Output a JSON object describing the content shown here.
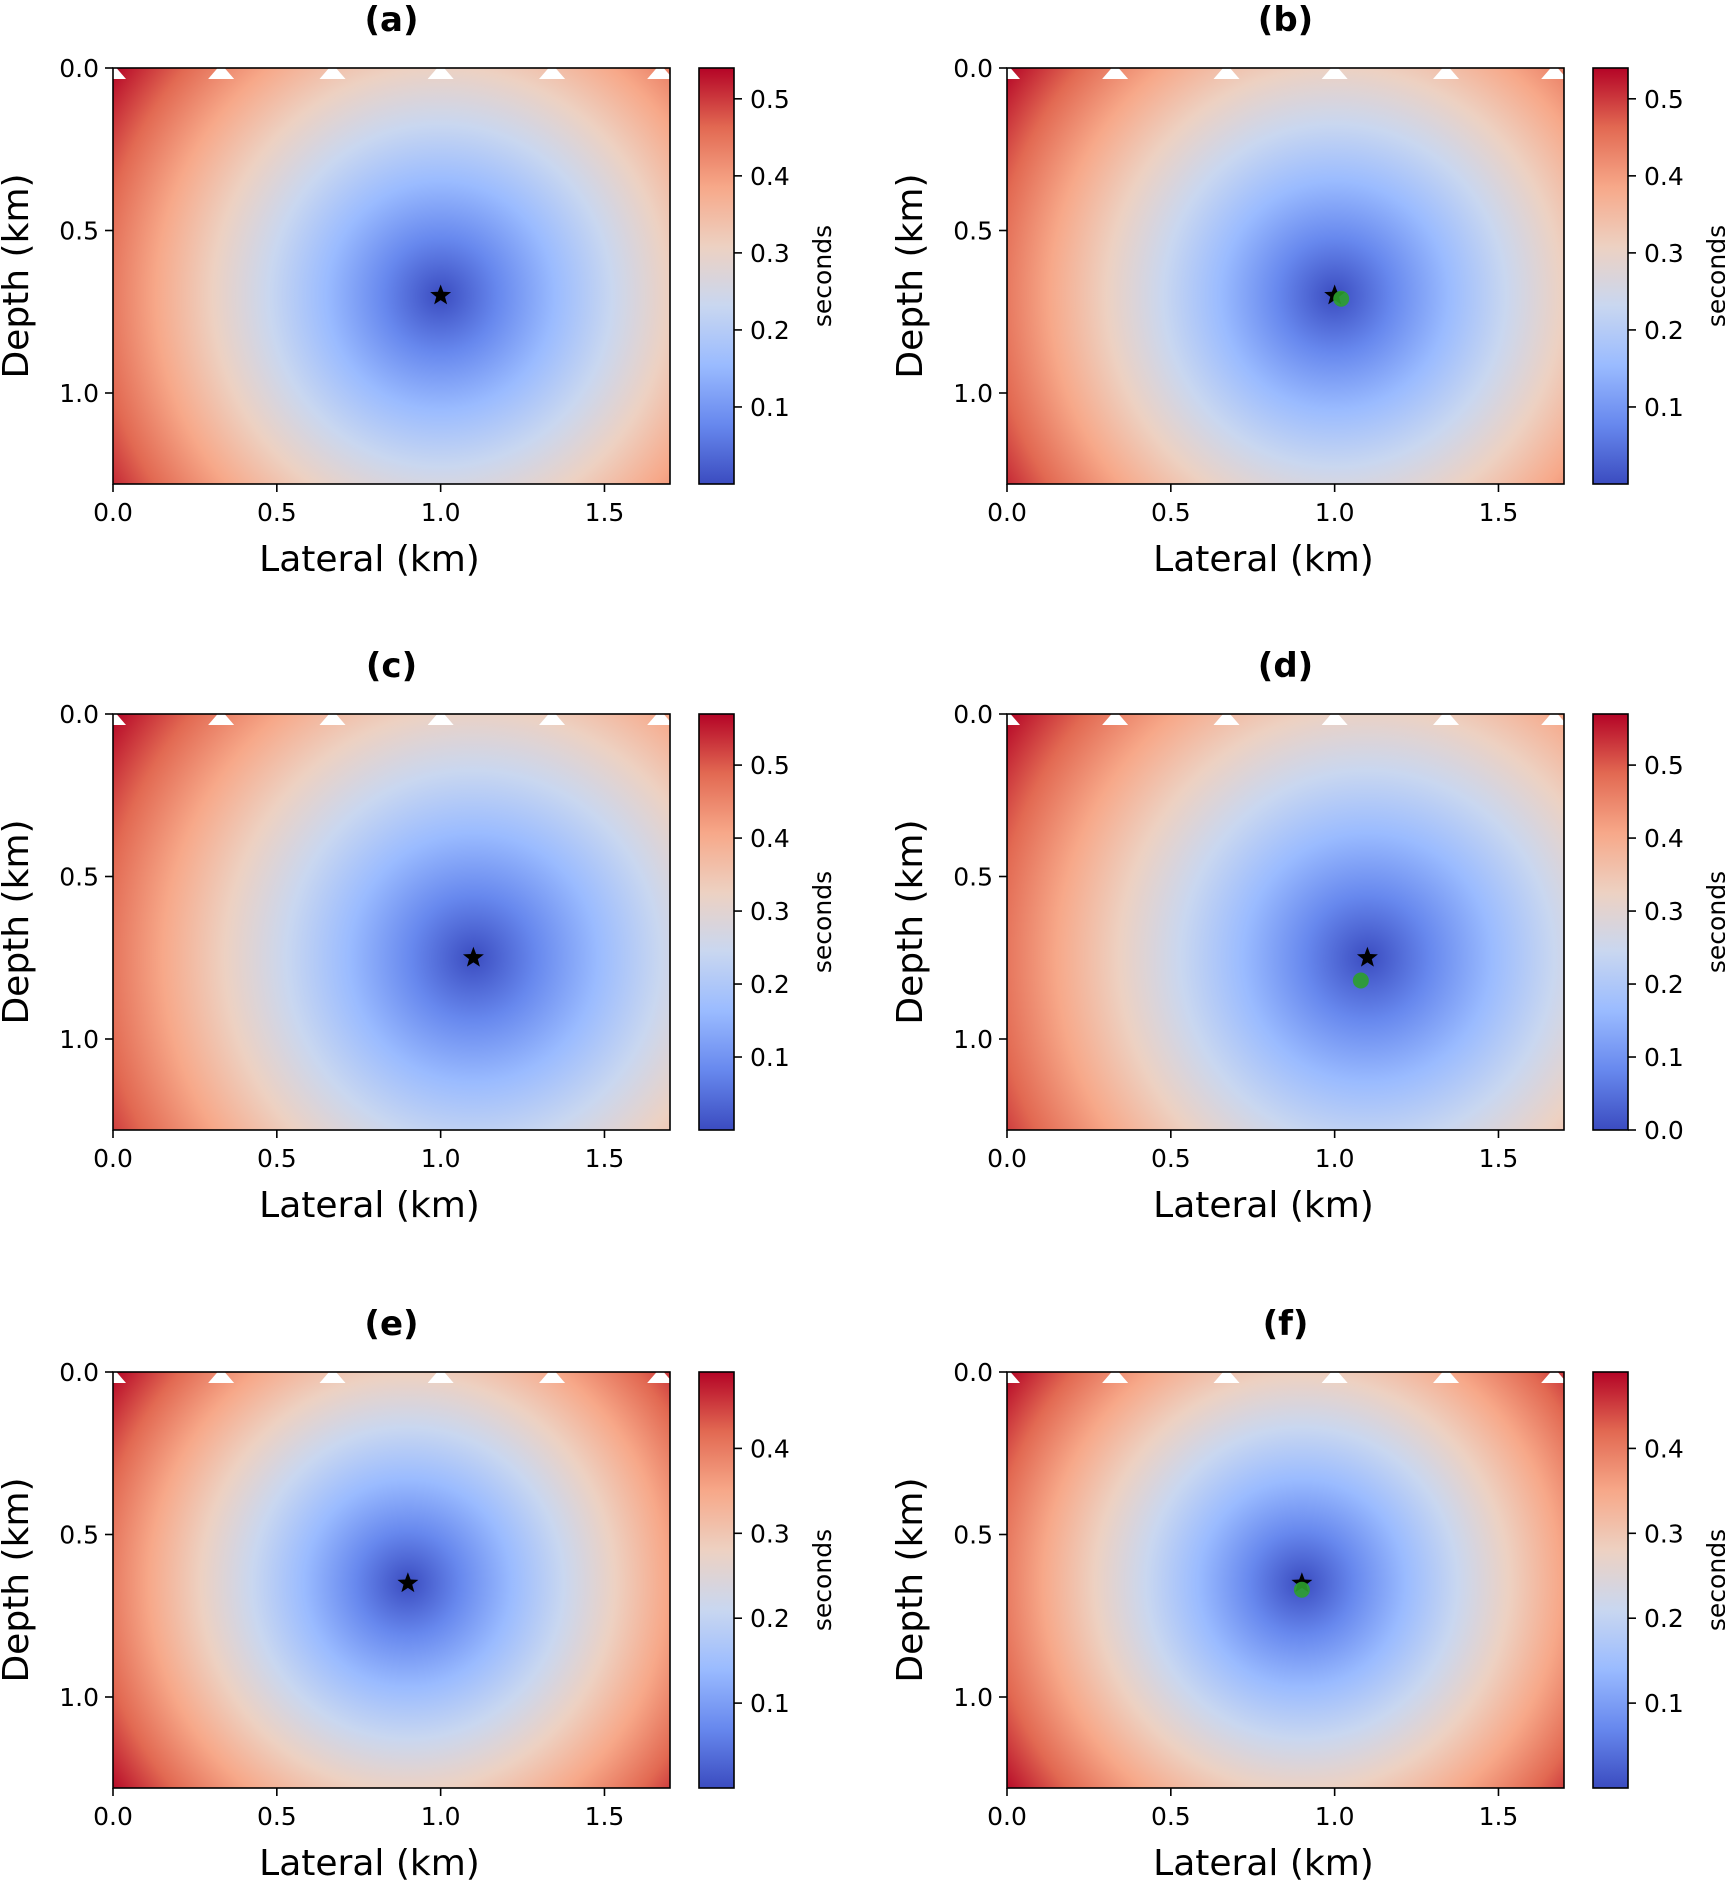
{
  "chart_data": [
    {
      "type": "heatmap",
      "title": "(a)",
      "xlabel": "Lateral (km)",
      "ylabel": "Depth (km)",
      "colorbar_label": "seconds",
      "colormap": "coolwarm",
      "xlim": [
        0.0,
        1.7
      ],
      "ylim": [
        1.28,
        0.0
      ],
      "xticks": [
        "0.0",
        "0.5",
        "1.0",
        "1.5"
      ],
      "yticks": [
        "0.0",
        "0.5",
        "1.0"
      ],
      "colorbar_ticks": [
        "0.1",
        "0.2",
        "0.3",
        "0.4",
        "0.5"
      ],
      "colorbar_range": [
        0.0,
        0.54
      ],
      "receivers": [
        [
          0.0,
          0.0
        ],
        [
          0.33,
          0.0
        ],
        [
          0.67,
          0.0
        ],
        [
          1.0,
          0.0
        ],
        [
          1.34,
          0.0
        ],
        [
          1.67,
          0.0
        ]
      ],
      "true_source": [
        1.0,
        0.7
      ],
      "estimated_source": null
    },
    {
      "type": "heatmap",
      "title": "(b)",
      "xlabel": "Lateral (km)",
      "ylabel": "Depth (km)",
      "colorbar_label": "seconds",
      "colormap": "coolwarm",
      "xlim": [
        0.0,
        1.7
      ],
      "ylim": [
        1.28,
        0.0
      ],
      "xticks": [
        "0.0",
        "0.5",
        "1.0",
        "1.5"
      ],
      "yticks": [
        "0.0",
        "0.5",
        "1.0"
      ],
      "colorbar_ticks": [
        "0.1",
        "0.2",
        "0.3",
        "0.4",
        "0.5"
      ],
      "colorbar_range": [
        0.0,
        0.54
      ],
      "receivers": [
        [
          0.0,
          0.0
        ],
        [
          0.33,
          0.0
        ],
        [
          0.67,
          0.0
        ],
        [
          1.0,
          0.0
        ],
        [
          1.34,
          0.0
        ],
        [
          1.67,
          0.0
        ]
      ],
      "true_source": [
        1.0,
        0.7
      ],
      "estimated_source": [
        1.02,
        0.71
      ]
    },
    {
      "type": "heatmap",
      "title": "(c)",
      "xlabel": "Lateral (km)",
      "ylabel": "Depth (km)",
      "colorbar_label": "seconds",
      "colormap": "coolwarm",
      "xlim": [
        0.0,
        1.7
      ],
      "ylim": [
        1.28,
        0.0
      ],
      "xticks": [
        "0.0",
        "0.5",
        "1.0",
        "1.5"
      ],
      "yticks": [
        "0.0",
        "0.5",
        "1.0"
      ],
      "colorbar_ticks": [
        "0.1",
        "0.2",
        "0.3",
        "0.4",
        "0.5"
      ],
      "colorbar_range": [
        0.0,
        0.57
      ],
      "receivers": [
        [
          0.0,
          0.0
        ],
        [
          0.33,
          0.0
        ],
        [
          0.67,
          0.0
        ],
        [
          1.0,
          0.0
        ],
        [
          1.34,
          0.0
        ],
        [
          1.67,
          0.0
        ]
      ],
      "true_source": [
        1.1,
        0.75
      ],
      "estimated_source": null
    },
    {
      "type": "heatmap",
      "title": "(d)",
      "xlabel": "Lateral (km)",
      "ylabel": "Depth (km)",
      "colorbar_label": "seconds",
      "colormap": "coolwarm",
      "xlim": [
        0.0,
        1.7
      ],
      "ylim": [
        1.28,
        0.0
      ],
      "xticks": [
        "0.0",
        "0.5",
        "1.0",
        "1.5"
      ],
      "yticks": [
        "0.0",
        "0.5",
        "1.0"
      ],
      "colorbar_ticks": [
        "0.0",
        "0.1",
        "0.2",
        "0.3",
        "0.4",
        "0.5"
      ],
      "colorbar_range": [
        0.0,
        0.57
      ],
      "receivers": [
        [
          0.0,
          0.0
        ],
        [
          0.33,
          0.0
        ],
        [
          0.67,
          0.0
        ],
        [
          1.0,
          0.0
        ],
        [
          1.34,
          0.0
        ],
        [
          1.67,
          0.0
        ]
      ],
      "true_source": [
        1.1,
        0.75
      ],
      "estimated_source": [
        1.08,
        0.82
      ]
    },
    {
      "type": "heatmap",
      "title": "(e)",
      "xlabel": "Lateral (km)",
      "ylabel": "Depth (km)",
      "colorbar_label": "seconds",
      "colormap": "coolwarm",
      "xlim": [
        0.0,
        1.7
      ],
      "ylim": [
        1.28,
        0.0
      ],
      "xticks": [
        "0.0",
        "0.5",
        "1.0",
        "1.5"
      ],
      "yticks": [
        "0.0",
        "0.5",
        "1.0"
      ],
      "colorbar_ticks": [
        "0.1",
        "0.2",
        "0.3",
        "0.4"
      ],
      "colorbar_range": [
        0.0,
        0.49
      ],
      "receivers": [
        [
          0.0,
          0.0
        ],
        [
          0.33,
          0.0
        ],
        [
          0.67,
          0.0
        ],
        [
          1.0,
          0.0
        ],
        [
          1.34,
          0.0
        ],
        [
          1.67,
          0.0
        ]
      ],
      "true_source": [
        0.9,
        0.65
      ],
      "estimated_source": null
    },
    {
      "type": "heatmap",
      "title": "(f)",
      "xlabel": "Lateral (km)",
      "ylabel": "Depth (km)",
      "colorbar_label": "seconds",
      "colormap": "coolwarm",
      "xlim": [
        0.0,
        1.7
      ],
      "ylim": [
        1.28,
        0.0
      ],
      "xticks": [
        "0.0",
        "0.5",
        "1.0",
        "1.5"
      ],
      "yticks": [
        "0.0",
        "0.5",
        "1.0"
      ],
      "colorbar_ticks": [
        "0.1",
        "0.2",
        "0.3",
        "0.4"
      ],
      "colorbar_range": [
        0.0,
        0.49
      ],
      "receivers": [
        [
          0.0,
          0.0
        ],
        [
          0.33,
          0.0
        ],
        [
          0.67,
          0.0
        ],
        [
          1.0,
          0.0
        ],
        [
          1.34,
          0.0
        ],
        [
          1.67,
          0.0
        ]
      ],
      "true_source": [
        0.9,
        0.65
      ],
      "estimated_source": [
        0.9,
        0.67
      ]
    }
  ],
  "colors": {
    "true_source": "#000000",
    "estimated_source": "#2ca02c",
    "receiver": "#ffffff",
    "colormap_stops": [
      "#3b4cc0",
      "#6788ee",
      "#9abbff",
      "#c9d7f0",
      "#edd1c2",
      "#f7a889",
      "#e26952",
      "#b40426"
    ]
  }
}
